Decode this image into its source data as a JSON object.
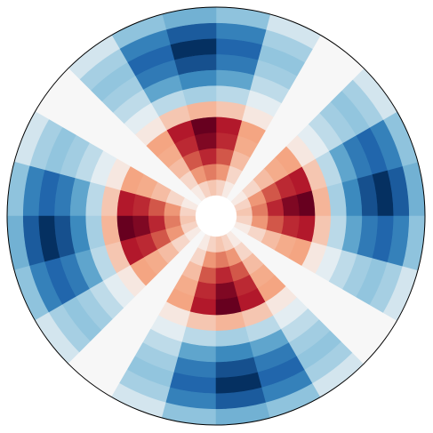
{
  "chart_data": {
    "type": "polar-heatmap",
    "colormap": "RdBu_r",
    "clim": [
      -1,
      1
    ],
    "rlim": [
      0,
      1
    ],
    "r_edges": [
      0.1,
      0.175,
      0.25,
      0.325,
      0.4,
      0.475,
      0.55,
      0.625,
      0.7,
      0.775,
      0.85,
      0.925,
      1.0
    ],
    "theta_edges": [
      0,
      15,
      30,
      45,
      60,
      75,
      90,
      105,
      120,
      135,
      150,
      165,
      180,
      195,
      210,
      225,
      240,
      255,
      270,
      285,
      300,
      315,
      330,
      345,
      360
    ],
    "values": [
      [
        0.15,
        0.11,
        0.04,
        0,
        0.04,
        0.11,
        0.15,
        0.11,
        0.04,
        0,
        0.04,
        0.11,
        0.15,
        0.11,
        0.04,
        0,
        0.04,
        0.11,
        0.15,
        0.11,
        0.04,
        0,
        0.04,
        0.11
      ],
      [
        0.4,
        0.3,
        0.1,
        0,
        0.1,
        0.3,
        0.4,
        0.3,
        0.1,
        0,
        0.1,
        0.3,
        0.4,
        0.3,
        0.1,
        0,
        0.1,
        0.3,
        0.4,
        0.3,
        0.1,
        0,
        0.1,
        0.3
      ],
      [
        0.7,
        0.53,
        0.18,
        0,
        0.18,
        0.53,
        0.7,
        0.53,
        0.18,
        0,
        0.18,
        0.53,
        0.7,
        0.53,
        0.18,
        0,
        0.18,
        0.53,
        0.7,
        0.53,
        0.18,
        0,
        0.18,
        0.53
      ],
      [
        0.92,
        0.69,
        0.23,
        0,
        0.23,
        0.69,
        0.92,
        0.69,
        0.23,
        0,
        0.23,
        0.69,
        0.92,
        0.69,
        0.23,
        0,
        0.23,
        0.69,
        0.92,
        0.69,
        0.23,
        0,
        0.23,
        0.69
      ],
      [
        1,
        0.75,
        0.25,
        0,
        0.25,
        0.75,
        1,
        0.75,
        0.25,
        0,
        0.25,
        0.75,
        1,
        0.75,
        0.25,
        0,
        0.25,
        0.75,
        1,
        0.75,
        0.25,
        0,
        0.25,
        0.75
      ],
      [
        0.2,
        0.15,
        0.05,
        0,
        0.05,
        0.15,
        0.2,
        0.15,
        0.05,
        0,
        0.05,
        0.15,
        0.2,
        0.15,
        0.05,
        0,
        0.05,
        0.15,
        0.2,
        0.15,
        0.05,
        0,
        0.05,
        0.15
      ],
      [
        -0.2,
        -0.15,
        -0.05,
        0,
        -0.05,
        -0.15,
        -0.2,
        -0.15,
        -0.05,
        0,
        -0.05,
        -0.15,
        -0.2,
        -0.15,
        -0.05,
        0,
        -0.05,
        -0.15,
        -0.2,
        -0.15,
        -0.05,
        0,
        -0.05,
        -0.15
      ],
      [
        -0.55,
        -0.41,
        -0.14,
        0,
        -0.14,
        -0.41,
        -0.55,
        -0.41,
        -0.14,
        0,
        -0.14,
        -0.41,
        -0.55,
        -0.41,
        -0.14,
        0,
        -0.14,
        -0.41,
        -0.55,
        -0.41,
        -0.14,
        0,
        -0.14,
        -0.41
      ],
      [
        -0.85,
        -0.64,
        -0.21,
        0,
        -0.21,
        -0.64,
        -0.85,
        -0.64,
        -0.21,
        0,
        -0.21,
        -0.64,
        -0.85,
        -0.64,
        -0.21,
        0,
        -0.21,
        -0.64,
        -0.85,
        -0.64,
        -0.21,
        0,
        -0.21,
        -0.64
      ],
      [
        -1,
        -0.75,
        -0.25,
        0,
        -0.25,
        -0.75,
        -1,
        -0.75,
        -0.25,
        0,
        -0.25,
        -0.75,
        -1,
        -0.75,
        -0.25,
        0,
        -0.25,
        -0.75,
        -1,
        -0.75,
        -0.25,
        0,
        -0.25,
        -0.75
      ],
      [
        -0.8,
        -0.6,
        -0.2,
        0,
        -0.2,
        -0.6,
        -0.8,
        -0.6,
        -0.2,
        0,
        -0.2,
        -0.6,
        -0.8,
        -0.6,
        -0.2,
        0,
        -0.2,
        -0.6,
        -0.8,
        -0.6,
        -0.2,
        0,
        -0.2,
        -0.6
      ],
      [
        -0.35,
        -0.26,
        -0.09,
        0,
        -0.09,
        -0.26,
        -0.35,
        -0.26,
        -0.09,
        0,
        -0.09,
        -0.26,
        -0.35,
        -0.26,
        -0.09,
        0,
        -0.09,
        -0.26,
        -0.35,
        -0.26,
        -0.09,
        0,
        -0.09,
        -0.26
      ]
    ]
  }
}
